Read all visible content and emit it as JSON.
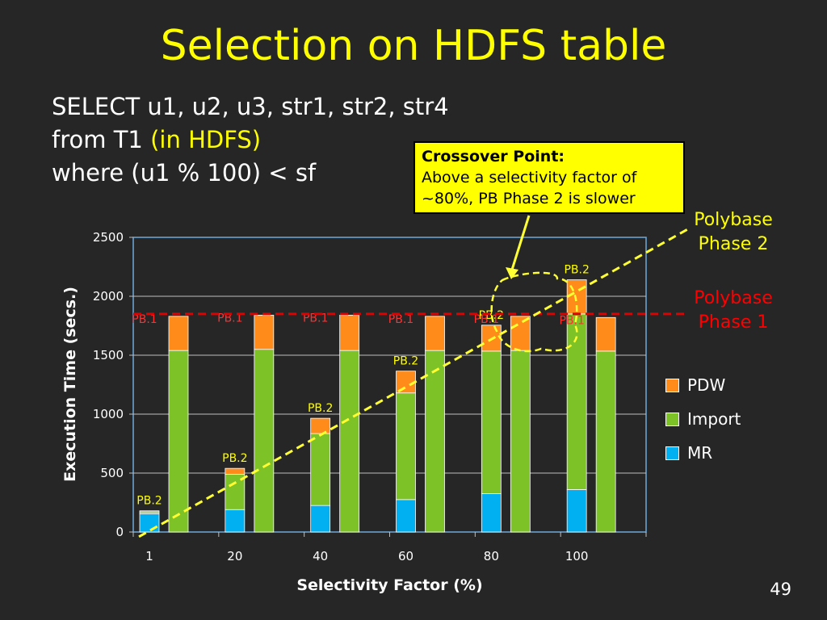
{
  "slide": {
    "title": "Selection on HDFS table",
    "query_line1": "SELECT u1, u2, u3, str1, str2, str4",
    "query_line2_a": "from T1 ",
    "query_line2_b": "(in HDFS)",
    "query_line3": "where (u1 % 100) < sf",
    "slide_number": "49",
    "callout_heading": "Crossover Point:",
    "callout_line1": "Above a selectivity factor of",
    "callout_line2": "~80%, PB Phase 2 is slower",
    "phase2_label_line1": "Polybase",
    "phase2_label_line2": "Phase 2",
    "phase1_label_line1": "Polybase",
    "phase1_label_line2": "Phase 1"
  },
  "colors": {
    "background": "#262626",
    "title": "#ffff00",
    "MR": "#00b0f0",
    "Import": "#7dc227",
    "PDW": "#ff8c1a",
    "phase1_line": "#e00000",
    "phase2_line": "#ffff33",
    "callout_bg": "#ffff00"
  },
  "chart_data": {
    "type": "bar",
    "stacked": true,
    "categories": [
      "1",
      "20",
      "40",
      "60",
      "80",
      "100"
    ],
    "xlabel": "Selectivity Factor (%)",
    "ylabel": "Execution Time (secs.)",
    "ylim": [
      0,
      2500
    ],
    "yticks": [
      "0",
      "500",
      "1000",
      "1500",
      "2000",
      "2500"
    ],
    "legend": [
      "PDW",
      "Import",
      "MR"
    ],
    "legend_position": "right",
    "pb2_bars": {
      "label": "PB.2",
      "MR": [
        155,
        190,
        225,
        275,
        325,
        360
      ],
      "Import": [
        15,
        300,
        610,
        905,
        1210,
        1490
      ],
      "PDW": [
        10,
        50,
        130,
        185,
        220,
        290
      ],
      "totals": [
        180,
        540,
        965,
        1365,
        1755,
        2140
      ]
    },
    "pb1_bars": {
      "label": "PB.1",
      "MR": [
        0,
        0,
        0,
        0,
        0,
        0
      ],
      "Import": [
        1540,
        1550,
        1540,
        1540,
        1540,
        1535
      ],
      "PDW": [
        290,
        290,
        300,
        290,
        290,
        285
      ],
      "totals": [
        1830,
        1840,
        1840,
        1830,
        1830,
        1820
      ]
    },
    "annotations": {
      "phase1_level": 1850,
      "phase2_trend": {
        "from": {
          "x": "1",
          "y": 200
        },
        "to": "upper-right beyond 100"
      }
    }
  }
}
